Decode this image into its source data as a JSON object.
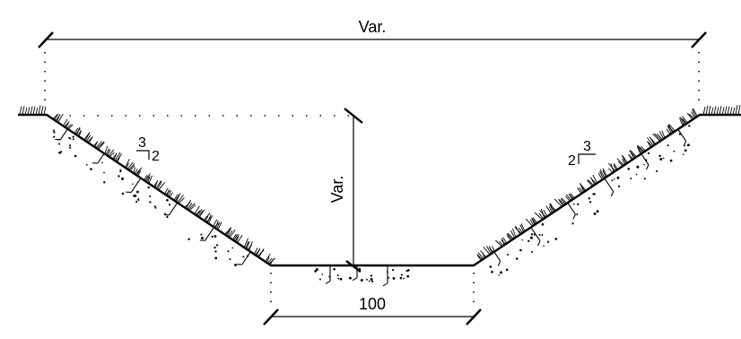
{
  "labels": {
    "top_width": "Var.",
    "depth": "Var.",
    "bottom_width": "100",
    "left_slope_rise": "3",
    "left_slope_run": "2",
    "right_slope_rise": "3",
    "right_slope_run": "2"
  },
  "colors": {
    "line": "#000000",
    "background": "#ffffff"
  }
}
